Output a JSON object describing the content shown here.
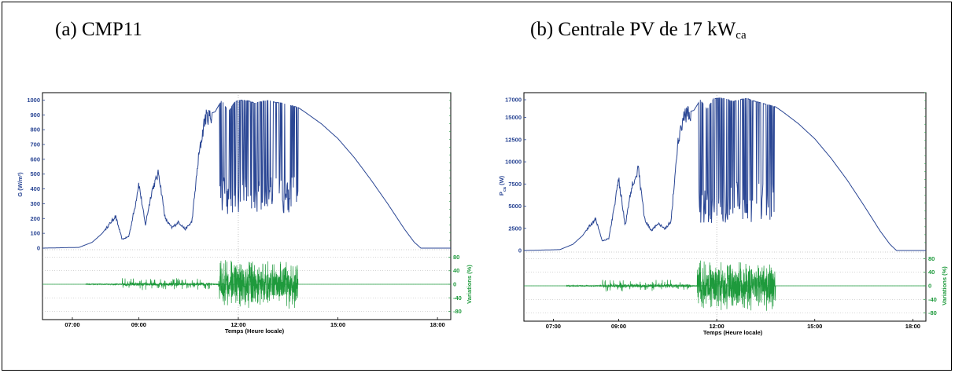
{
  "colors": {
    "power": "#2a4694",
    "variation": "#1e9a3c",
    "grid": "#9a9a9a"
  },
  "chart_data": [
    {
      "type": "line",
      "panel_label": "(a)  CMP11",
      "subscript": "",
      "xlabel": "Temps (Heure locale)",
      "ylabel": "G (W/m²)",
      "ylabel_sub": "",
      "y2label": "Variations (%)",
      "x_ticks": [
        "07:00",
        "09:00",
        "12:00",
        "15:00",
        "18:00"
      ],
      "x_tick_hours": [
        7,
        9,
        12,
        15,
        18
      ],
      "xlim": [
        6.1,
        18.4
      ],
      "ylim": [
        0,
        1050
      ],
      "y_ticks": [
        0,
        100,
        200,
        300,
        400,
        500,
        600,
        700,
        800,
        900,
        1000
      ],
      "y2lim": [
        -95,
        95
      ],
      "y2_ticks": [
        -80,
        -40,
        0,
        40,
        80
      ],
      "series": [
        {
          "role": "power",
          "x": [
            6.1,
            7.2,
            7.6,
            7.9,
            8.1,
            8.3,
            8.5,
            8.7,
            8.9,
            9.0,
            9.2,
            9.4,
            9.6,
            9.8,
            10.0,
            10.2,
            10.4,
            10.6,
            10.8,
            11.0,
            11.3,
            11.5,
            11.7,
            11.9,
            12.1,
            12.3,
            12.5,
            12.7,
            12.9,
            13.1,
            13.3,
            13.5,
            13.8,
            14.0,
            14.5,
            15.0,
            15.5,
            16.0,
            16.5,
            17.0,
            17.3,
            17.5,
            17.7,
            18.4
          ],
          "y": [
            0,
            5,
            40,
            100,
            160,
            220,
            60,
            80,
            300,
            450,
            160,
            400,
            520,
            200,
            140,
            180,
            130,
            180,
            620,
            900,
            920,
            1000,
            920,
            990,
            1000,
            995,
            980,
            990,
            1000,
            985,
            980,
            970,
            950,
            920,
            840,
            740,
            610,
            460,
            300,
            130,
            40,
            0,
            0,
            0
          ],
          "fluct_start": 11.4,
          "fluct_end": 13.8,
          "fluct_low": 230
        },
        {
          "role": "variation",
          "noise_start": 11.4,
          "noise_end": 13.8,
          "peak": 75
        }
      ]
    },
    {
      "type": "line",
      "panel_label": "(b)  Centrale PV de 17 kW",
      "subscript": "ca",
      "xlabel": "Temps (Heure locale)",
      "ylabel": "P",
      "ylabel_sub": "ca",
      "ylabel_suffix": " (W)",
      "y2label": "Variations (%)",
      "x_ticks": [
        "07:00",
        "09:00",
        "12:00",
        "15:00",
        "18:00"
      ],
      "x_tick_hours": [
        7,
        9,
        12,
        15,
        18
      ],
      "xlim": [
        6.1,
        18.4
      ],
      "ylim": [
        0,
        17800
      ],
      "y_ticks": [
        0,
        2500,
        5000,
        7500,
        10000,
        12500,
        15000,
        17000
      ],
      "y2lim": [
        -95,
        95
      ],
      "y2_ticks": [
        -80,
        -40,
        0,
        40,
        80
      ],
      "series": [
        {
          "role": "power",
          "x": [
            6.1,
            7.2,
            7.6,
            7.9,
            8.1,
            8.3,
            8.5,
            8.7,
            8.9,
            9.0,
            9.2,
            9.4,
            9.6,
            9.8,
            10.0,
            10.2,
            10.4,
            10.6,
            10.8,
            11.0,
            11.3,
            11.5,
            11.7,
            11.9,
            12.1,
            12.3,
            12.5,
            12.7,
            12.9,
            13.1,
            13.3,
            13.5,
            13.8,
            14.0,
            14.5,
            15.0,
            15.5,
            16.0,
            16.5,
            17.0,
            17.3,
            17.5,
            17.7,
            18.4
          ],
          "y": [
            0,
            100,
            700,
            1700,
            2800,
            3600,
            1100,
            1400,
            5800,
            8200,
            2900,
            7400,
            9400,
            3500,
            2300,
            3100,
            2500,
            3300,
            12000,
            15500,
            15800,
            17000,
            15900,
            17100,
            17200,
            17100,
            16800,
            17000,
            17200,
            16900,
            16700,
            16500,
            16200,
            15700,
            14300,
            12600,
            10400,
            7900,
            5100,
            2200,
            700,
            0,
            0,
            0
          ],
          "fluct_start": 11.4,
          "fluct_end": 13.8,
          "fluct_low": 3000
        },
        {
          "role": "variation",
          "noise_start": 11.4,
          "noise_end": 13.8,
          "peak": 80
        }
      ]
    }
  ]
}
